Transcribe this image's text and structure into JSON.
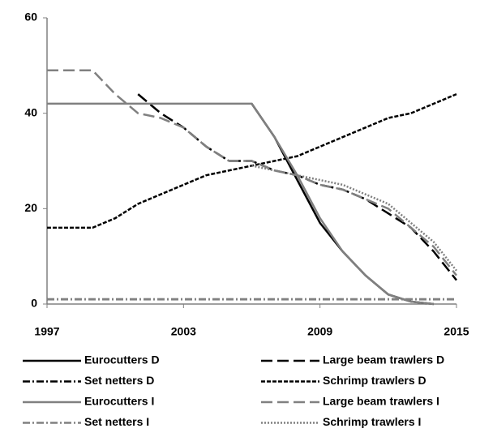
{
  "chart_data": {
    "type": "line",
    "x": [
      1997,
      1998,
      1999,
      2000,
      2001,
      2002,
      2003,
      2004,
      2005,
      2006,
      2007,
      2008,
      2009,
      2010,
      2011,
      2012,
      2013,
      2014,
      2015
    ],
    "xlim": [
      1997,
      2015
    ],
    "xticks": [
      1997,
      2003,
      2009,
      2015
    ],
    "ylim": [
      0,
      60
    ],
    "yticks": [
      0,
      20,
      40,
      60
    ],
    "series": [
      {
        "name": "Eurocutters D",
        "color": "#000000",
        "dash": "solid",
        "values": [
          null,
          null,
          null,
          null,
          null,
          null,
          null,
          null,
          null,
          42,
          35,
          26,
          17,
          11,
          6,
          2,
          0.5,
          0,
          null
        ]
      },
      {
        "name": "Large beam trawlers D",
        "color": "#000000",
        "dash": "dashed",
        "values": [
          null,
          null,
          null,
          null,
          44,
          40,
          37,
          33,
          30,
          30,
          28,
          27,
          25,
          24,
          22,
          19,
          16,
          11,
          5
        ]
      },
      {
        "name": "Set netters D",
        "color": "#000000",
        "dash": "dashdot",
        "values": [
          1,
          1,
          1,
          1,
          1,
          1,
          1,
          1,
          1,
          1,
          1,
          1,
          1,
          1,
          1,
          1,
          1,
          1,
          1
        ]
      },
      {
        "name": "Schrimp trawlers D",
        "color": "#000000",
        "dash": "shortdash",
        "values": [
          16,
          16,
          16,
          18,
          21,
          23,
          25,
          27,
          28,
          29,
          30,
          31,
          33,
          35,
          37,
          39,
          40,
          42,
          44
        ]
      },
      {
        "name": "Eurocutters I",
        "color": "#808080",
        "dash": "solid",
        "values": [
          42,
          42,
          42,
          42,
          42,
          42,
          42,
          42,
          42,
          42,
          35,
          27,
          18,
          11,
          6,
          2,
          0.5,
          0,
          null
        ]
      },
      {
        "name": "Large beam trawlers I",
        "color": "#808080",
        "dash": "dashed",
        "values": [
          49,
          49,
          49,
          44,
          40,
          39,
          37,
          33,
          30,
          30,
          28,
          27,
          25,
          24,
          22,
          20,
          16,
          12,
          6
        ]
      },
      {
        "name": "Set netters I",
        "color": "#808080",
        "dash": "dashdot",
        "values": [
          1,
          1,
          1,
          1,
          1,
          1,
          1,
          1,
          1,
          1,
          1,
          1,
          1,
          1,
          1,
          1,
          1,
          1,
          1
        ]
      },
      {
        "name": "Schrimp trawlers I",
        "color": "#808080",
        "dash": "dotted",
        "values": [
          null,
          null,
          null,
          null,
          null,
          null,
          null,
          null,
          null,
          29,
          28,
          27,
          26,
          25,
          23,
          21,
          17,
          13,
          7
        ]
      }
    ]
  }
}
